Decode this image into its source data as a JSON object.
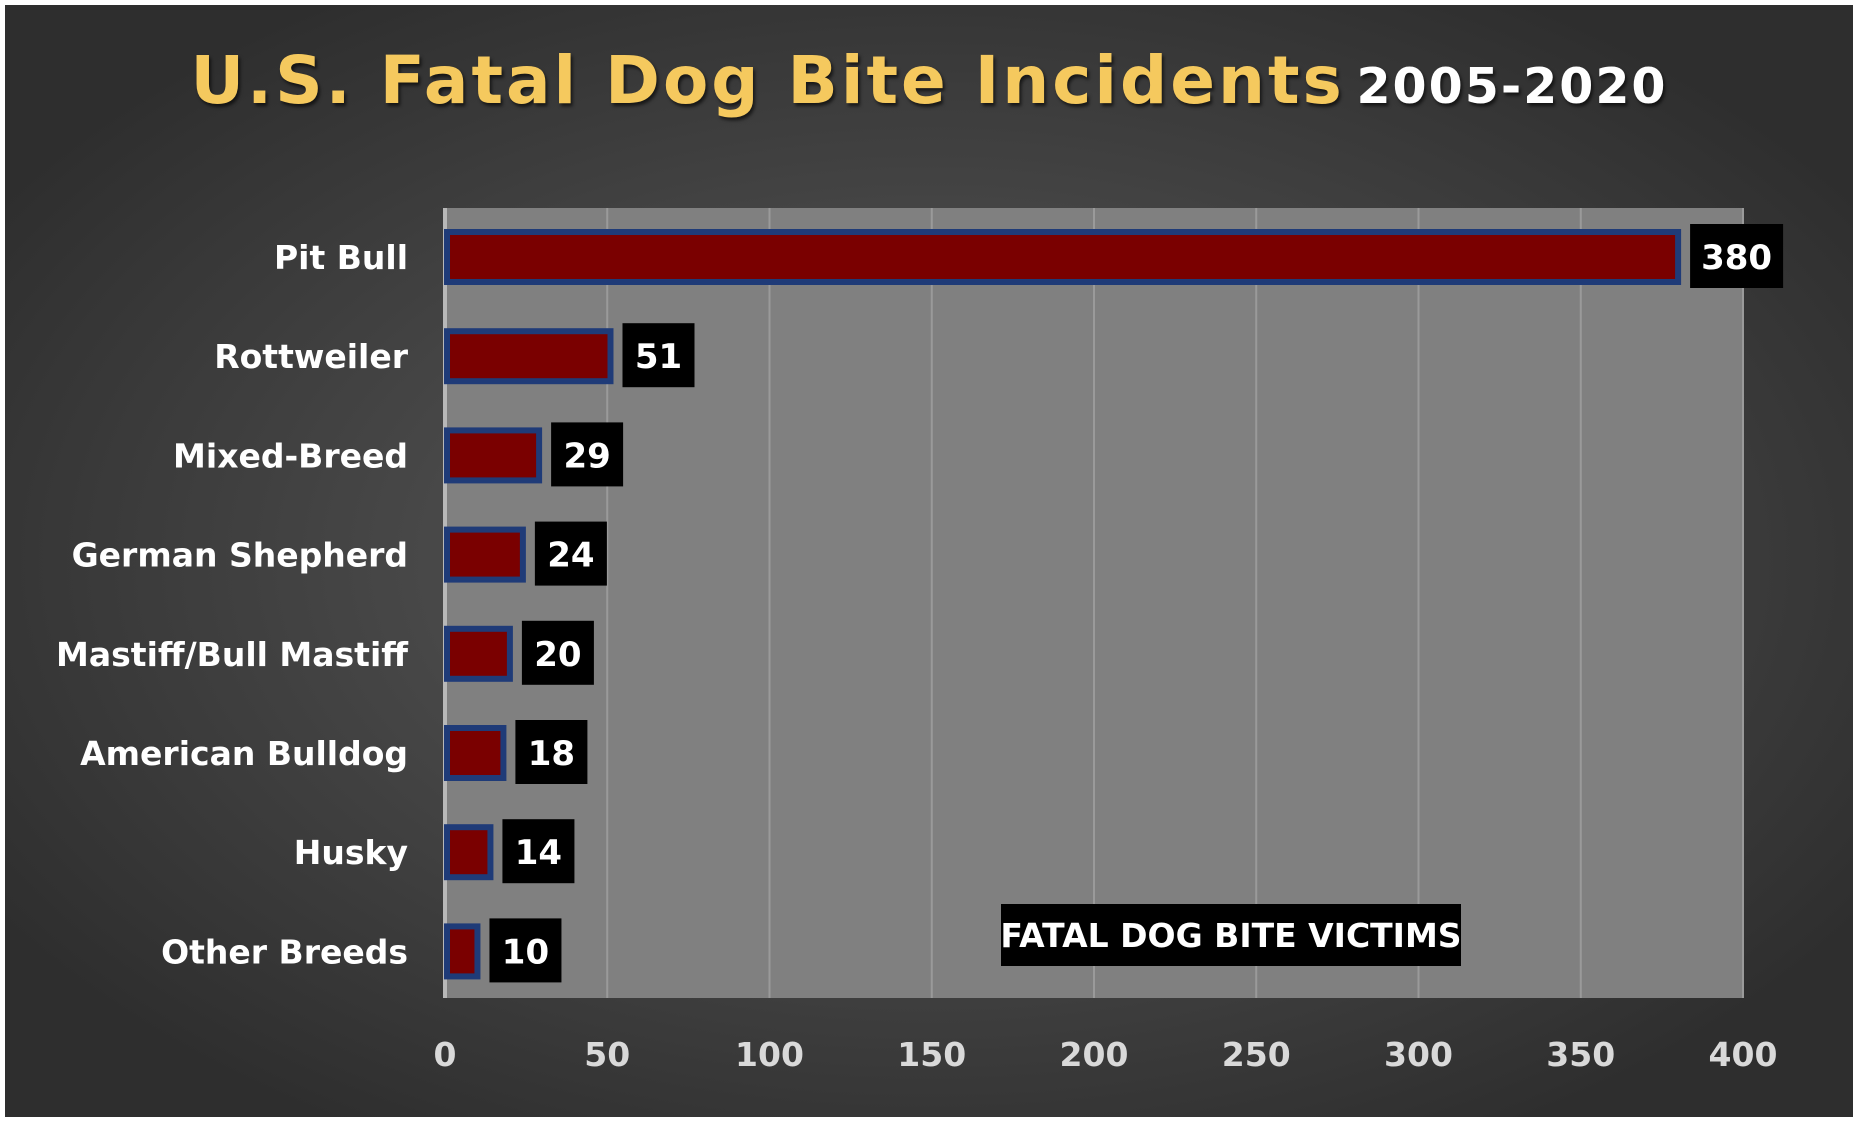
{
  "chart_data": {
    "type": "bar",
    "orientation": "horizontal",
    "title": "U.S. Fatal Dog Bite Incidents",
    "subtitle": "2005-2020",
    "categories": [
      "Pit Bull",
      "Rottweiler",
      "Mixed-Breed",
      "German Shepherd",
      "Mastiff/Bull Mastiff",
      "American Bulldog",
      "Husky",
      "Other Breeds"
    ],
    "values": [
      380,
      51,
      29,
      24,
      20,
      18,
      14,
      10
    ],
    "xlim": [
      0,
      400
    ],
    "xticks": [
      0,
      50,
      100,
      150,
      200,
      250,
      300,
      350,
      400
    ],
    "xlabel": "",
    "ylabel": "",
    "annotation": "FATAL DOG BITE VICTIMS",
    "grid": true,
    "colors": {
      "title": "#f5c95e",
      "bar_fill": "#7a0000",
      "bar_edge": "#1f3b78",
      "plot_bg": "#808080",
      "gridline": "#9a9a9a",
      "label_bg": "#000000"
    }
  }
}
